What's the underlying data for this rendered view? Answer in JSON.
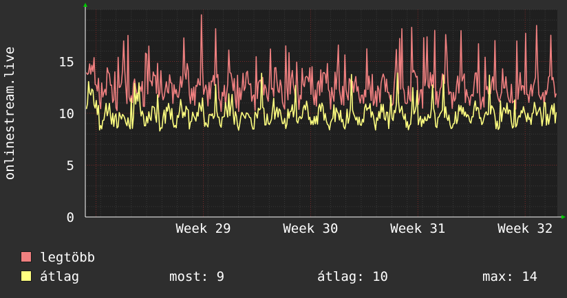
{
  "chart_data": {
    "type": "line",
    "ylabel": "onlinestream.live",
    "yticks": [
      0,
      5,
      10,
      15
    ],
    "ylim": [
      0,
      20
    ],
    "xlim": [
      28.4,
      32.8
    ],
    "xticks": [
      {
        "label": "Week 29",
        "week": 29
      },
      {
        "label": "Week 30",
        "week": 30
      },
      {
        "label": "Week 31",
        "week": 31
      },
      {
        "label": "Week 32",
        "week": 32
      }
    ],
    "grid": true,
    "series": [
      {
        "name": "legtöbb",
        "color": "#f08080",
        "mean": 12.2,
        "amplitude": 1.6,
        "spike": 5.8,
        "variance_seed": 7,
        "peak": 18
      },
      {
        "name": "átlag",
        "color": "#ffff80",
        "mean": 9.7,
        "amplitude": 1.1,
        "spike": 3.2,
        "variance_seed": 3,
        "peak": 14
      }
    ],
    "legend_placement": "bottom-left"
  },
  "legend": {
    "items": [
      {
        "label": "legtöbb",
        "color": "#f08080"
      },
      {
        "label": "átlag",
        "color": "#ffff80"
      }
    ]
  },
  "stats": {
    "now": "most: 9",
    "avg": "átlag: 10",
    "max": "max: 14"
  },
  "colors": {
    "background": "#2e2e2e",
    "plot_bg": "#1f1f1f",
    "grid_major": "#7a2a2a",
    "grid_minor": "#3a3a3a",
    "axis_arrow": "#00cc00"
  }
}
